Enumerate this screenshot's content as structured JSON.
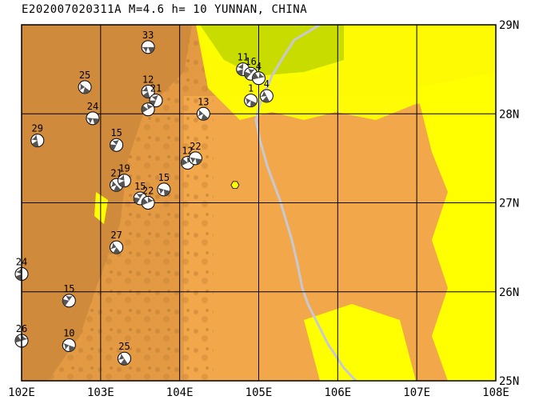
{
  "title": "E202007020311A M=4.6 h= 10 YUNNAN, CHINA",
  "map": {
    "lon_range": [
      102,
      108
    ],
    "lat_range": [
      25,
      29
    ],
    "lon_ticks": [
      "102E",
      "103E",
      "104E",
      "105E",
      "106E",
      "107E",
      "108E"
    ],
    "lat_ticks": [
      "25N",
      "26N",
      "27N",
      "28N",
      "29N"
    ],
    "colors": {
      "land_dark": "#cf8a3c",
      "land_mid": "#e39a42",
      "land_light": "#f2a84a",
      "lowland": "#ffff00",
      "green_basin": "#c8dc00",
      "boundary": "#c8c8d2",
      "grid": "#000000",
      "epicenter": "#ffff00"
    },
    "epicenter": {
      "lon": 104.7,
      "lat": 27.2
    },
    "events": [
      {
        "lon": 103.6,
        "lat": 28.75,
        "label": "33"
      },
      {
        "lon": 102.8,
        "lat": 28.3,
        "label": "25"
      },
      {
        "lon": 103.6,
        "lat": 28.25,
        "label": "12"
      },
      {
        "lon": 103.7,
        "lat": 28.15,
        "label": "21"
      },
      {
        "lon": 103.6,
        "lat": 28.05,
        "label": ""
      },
      {
        "lon": 102.9,
        "lat": 27.95,
        "label": "24"
      },
      {
        "lon": 104.3,
        "lat": 28.0,
        "label": "13"
      },
      {
        "lon": 102.2,
        "lat": 27.7,
        "label": "29"
      },
      {
        "lon": 103.2,
        "lat": 27.65,
        "label": "15"
      },
      {
        "lon": 104.1,
        "lat": 27.45,
        "label": "12"
      },
      {
        "lon": 104.2,
        "lat": 27.5,
        "label": "22"
      },
      {
        "lon": 103.2,
        "lat": 27.2,
        "label": "21"
      },
      {
        "lon": 103.3,
        "lat": 27.25,
        "label": "19"
      },
      {
        "lon": 103.5,
        "lat": 27.05,
        "label": "15"
      },
      {
        "lon": 103.6,
        "lat": 27.0,
        "label": "22"
      },
      {
        "lon": 103.8,
        "lat": 27.15,
        "label": "15"
      },
      {
        "lon": 103.2,
        "lat": 26.5,
        "label": "27"
      },
      {
        "lon": 102.0,
        "lat": 26.2,
        "label": "24"
      },
      {
        "lon": 102.6,
        "lat": 25.9,
        "label": "15"
      },
      {
        "lon": 102.0,
        "lat": 25.45,
        "label": "26"
      },
      {
        "lon": 102.6,
        "lat": 25.4,
        "label": "10"
      },
      {
        "lon": 103.3,
        "lat": 25.25,
        "label": "25"
      },
      {
        "lon": 104.8,
        "lat": 28.5,
        "label": "11"
      },
      {
        "lon": 104.9,
        "lat": 28.45,
        "label": "16"
      },
      {
        "lon": 105.0,
        "lat": 28.4,
        "label": "4"
      },
      {
        "lon": 104.9,
        "lat": 28.15,
        "label": "1"
      },
      {
        "lon": 105.1,
        "lat": 28.2,
        "label": "4"
      }
    ]
  }
}
